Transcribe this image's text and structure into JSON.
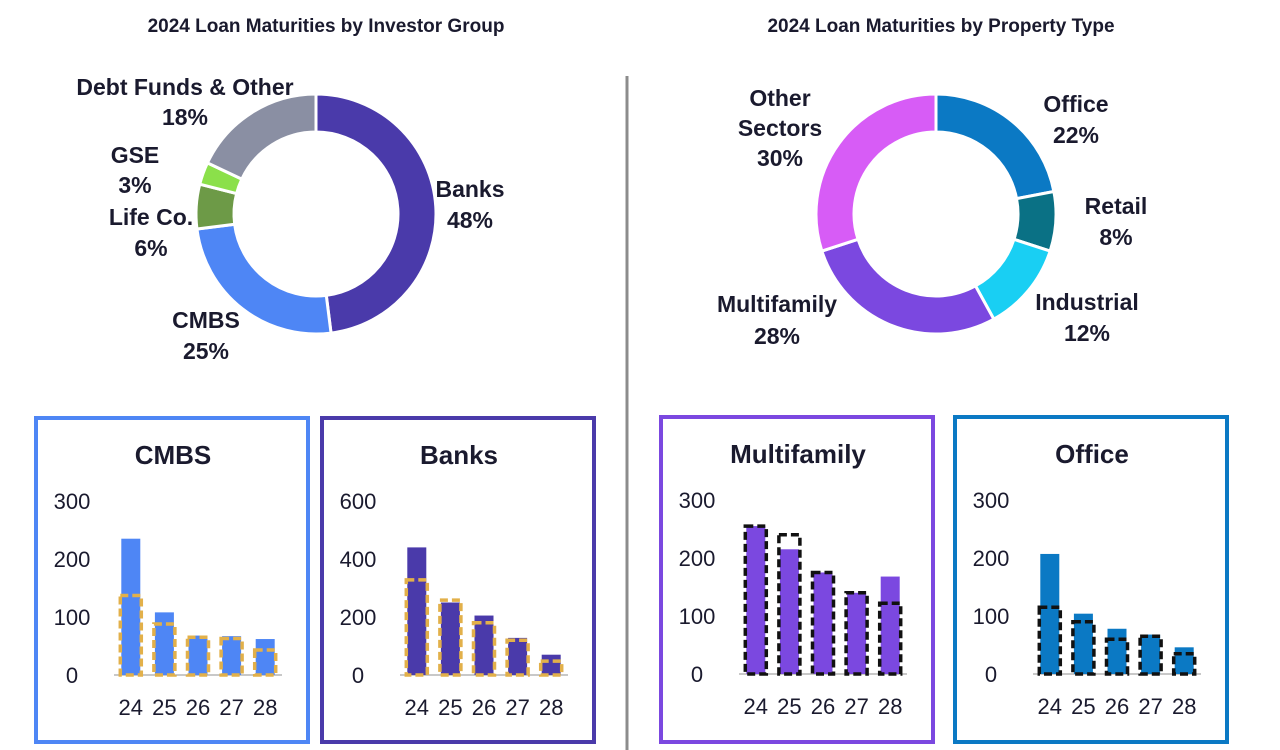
{
  "chart_data": [
    {
      "type": "pie",
      "title": "2024 Loan Maturities by Investor Group",
      "slices": [
        {
          "label": "Banks",
          "value": 48,
          "value_label": "48%",
          "color": "#4a3aaa"
        },
        {
          "label": "CMBS",
          "value": 25,
          "value_label": "25%",
          "color": "#4e86f5"
        },
        {
          "label": "Life Co.",
          "value": 6,
          "value_label": "6%",
          "color": "#6d9a47"
        },
        {
          "label": "GSE",
          "value": 3,
          "value_label": "3%",
          "color": "#8be04a"
        },
        {
          "label": "Debt Funds & Other",
          "value": 18,
          "value_label": "18%",
          "color": "#8a8fa3"
        }
      ]
    },
    {
      "type": "pie",
      "title": "2024 Loan Maturities by Property Type",
      "slices": [
        {
          "label": "Office",
          "value": 22,
          "value_label": "22%",
          "color": "#0b79c4"
        },
        {
          "label": "Retail",
          "value": 8,
          "value_label": "8%",
          "color": "#0a7185"
        },
        {
          "label": "Industrial",
          "value": 12,
          "value_label": "12%",
          "color": "#19cff3"
        },
        {
          "label": "Multifamily",
          "value": 28,
          "value_label": "28%",
          "color": "#7b48e0"
        },
        {
          "label": "Other Sectors",
          "value": 30,
          "value_label": "30%",
          "color": "#d75cf6"
        }
      ]
    },
    {
      "type": "bar",
      "title": "CMBS",
      "categories": [
        "24",
        "25",
        "26",
        "27",
        "28"
      ],
      "series": [
        {
          "values": [
            235,
            108,
            68,
            67,
            62
          ],
          "style": "filled",
          "color": "#4e86f5"
        },
        {
          "values": [
            137,
            88,
            65,
            63,
            43
          ],
          "style": "dashed-outline",
          "color": "#e2b04a"
        }
      ],
      "yticks": [
        "0",
        "100",
        "200",
        "300"
      ],
      "ylim": [
        0,
        300
      ],
      "frame_color": "#4e86f5"
    },
    {
      "type": "bar",
      "title": "Banks",
      "categories": [
        "24",
        "25",
        "26",
        "27",
        "28"
      ],
      "series": [
        {
          "values": [
            440,
            250,
            205,
            128,
            70
          ],
          "style": "filled",
          "color": "#4a3aaa"
        },
        {
          "values": [
            328,
            258,
            180,
            120,
            48
          ],
          "style": "dashed-outline",
          "color": "#e2b04a"
        }
      ],
      "yticks": [
        "0",
        "200",
        "400",
        "600"
      ],
      "ylim": [
        0,
        600
      ],
      "frame_color": "#4a3aaa"
    },
    {
      "type": "bar",
      "title": "Multifamily",
      "categories": [
        "24",
        "25",
        "26",
        "27",
        "28"
      ],
      "series": [
        {
          "values": [
            255,
            215,
            175,
            140,
            168
          ],
          "style": "filled",
          "color": "#7b48e0"
        },
        {
          "values": [
            255,
            240,
            175,
            140,
            122
          ],
          "style": "dashed-outline",
          "color": "#111111"
        }
      ],
      "yticks": [
        "0",
        "100",
        "200",
        "300"
      ],
      "ylim": [
        0,
        300
      ],
      "frame_color": "#7b48e0"
    },
    {
      "type": "bar",
      "title": "Office",
      "categories": [
        "24",
        "25",
        "26",
        "27",
        "28"
      ],
      "series": [
        {
          "values": [
            207,
            104,
            78,
            68,
            46
          ],
          "style": "filled",
          "color": "#0b79c4"
        },
        {
          "values": [
            115,
            90,
            60,
            65,
            35
          ],
          "style": "dashed-outline",
          "color": "#111111"
        }
      ],
      "yticks": [
        "0",
        "100",
        "200",
        "300"
      ],
      "ylim": [
        0,
        300
      ],
      "frame_color": "#0b79c4"
    }
  ],
  "colors": {
    "text": "#1a1a2e",
    "divider": "#8c8c8c",
    "axis": "#c8c8c8"
  }
}
